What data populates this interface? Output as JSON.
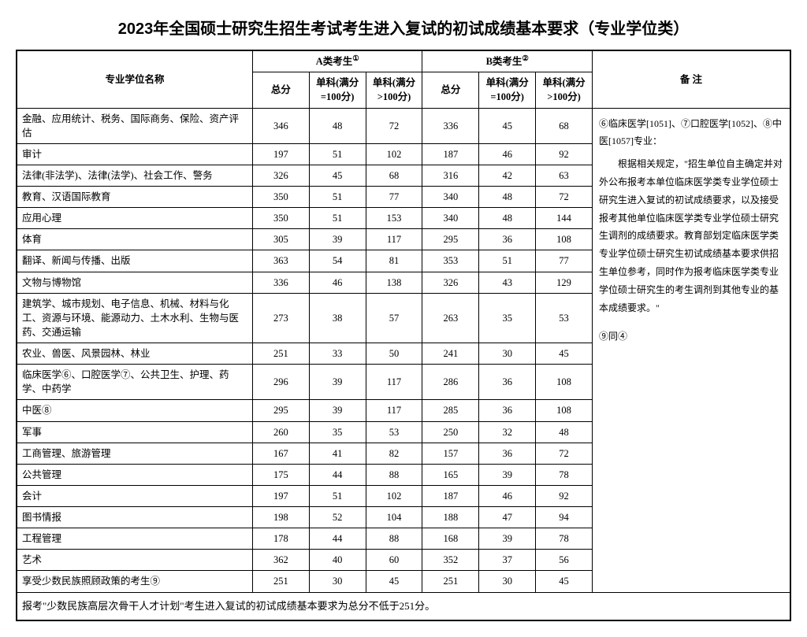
{
  "title": "2023年全国硕士研究生招生考试考生进入复试的初试成绩基本要求（专业学位类）",
  "header": {
    "name": "专业学位名称",
    "groupA": "A类考生",
    "groupB": "B类考生",
    "supA": "①",
    "supB": "②",
    "total": "总分",
    "single100": "单科(满分=100分)",
    "singleOver100": "单科(满分>100分)",
    "notes": "备  注"
  },
  "rows": [
    {
      "name": "金融、应用统计、税务、国际商务、保险、资产评估",
      "a": [
        346,
        48,
        72
      ],
      "b": [
        336,
        45,
        68
      ]
    },
    {
      "name": "审计",
      "a": [
        197,
        51,
        102
      ],
      "b": [
        187,
        46,
        92
      ]
    },
    {
      "name": "法律(非法学)、法律(法学)、社会工作、警务",
      "a": [
        326,
        45,
        68
      ],
      "b": [
        316,
        42,
        63
      ]
    },
    {
      "name": "教育、汉语国际教育",
      "a": [
        350,
        51,
        77
      ],
      "b": [
        340,
        48,
        72
      ]
    },
    {
      "name": "应用心理",
      "a": [
        350,
        51,
        153
      ],
      "b": [
        340,
        48,
        144
      ]
    },
    {
      "name": "体育",
      "a": [
        305,
        39,
        117
      ],
      "b": [
        295,
        36,
        108
      ]
    },
    {
      "name": "翻译、新闻与传播、出版",
      "a": [
        363,
        54,
        81
      ],
      "b": [
        353,
        51,
        77
      ]
    },
    {
      "name": "文物与博物馆",
      "a": [
        336,
        46,
        138
      ],
      "b": [
        326,
        43,
        129
      ]
    },
    {
      "name": "建筑学、城市规划、电子信息、机械、材料与化工、资源与环境、能源动力、土木水利、生物与医药、交通运输",
      "a": [
        273,
        38,
        57
      ],
      "b": [
        263,
        35,
        53
      ]
    },
    {
      "name": "农业、兽医、风景园林、林业",
      "a": [
        251,
        33,
        50
      ],
      "b": [
        241,
        30,
        45
      ]
    },
    {
      "name": "临床医学⑥、口腔医学⑦、公共卫生、护理、药学、中药学",
      "a": [
        296,
        39,
        117
      ],
      "b": [
        286,
        36,
        108
      ]
    },
    {
      "name": "中医⑧",
      "a": [
        295,
        39,
        117
      ],
      "b": [
        285,
        36,
        108
      ]
    },
    {
      "name": "军事",
      "a": [
        260,
        35,
        53
      ],
      "b": [
        250,
        32,
        48
      ]
    },
    {
      "name": "工商管理、旅游管理",
      "a": [
        167,
        41,
        82
      ],
      "b": [
        157,
        36,
        72
      ]
    },
    {
      "name": "公共管理",
      "a": [
        175,
        44,
        88
      ],
      "b": [
        165,
        39,
        78
      ]
    },
    {
      "name": "会计",
      "a": [
        197,
        51,
        102
      ],
      "b": [
        187,
        46,
        92
      ]
    },
    {
      "name": "图书情报",
      "a": [
        198,
        52,
        104
      ],
      "b": [
        188,
        47,
        94
      ]
    },
    {
      "name": "工程管理",
      "a": [
        178,
        44,
        88
      ],
      "b": [
        168,
        39,
        78
      ]
    },
    {
      "name": "艺术",
      "a": [
        362,
        40,
        60
      ],
      "b": [
        352,
        37,
        56
      ]
    },
    {
      "name": "享受少数民族照顾政策的考生⑨",
      "a": [
        251,
        30,
        45
      ],
      "b": [
        251,
        30,
        45
      ]
    }
  ],
  "notes": {
    "line1": "⑥临床医学[1051]、⑦口腔医学[1052]、⑧中医[1057]专业：",
    "line2": "　　根据相关规定，\"招生单位自主确定并对外公布报考本单位临床医学类专业学位硕士研究生进入复试的初试成绩要求，以及接受报考其他单位临床医学类专业学位硕士研究生调剂的成绩要求。教育部划定临床医学类专业学位硕士研究生初试成绩基本要求供招生单位参考，同时作为报考临床医学类专业学位硕士研究生的考生调剂到其他专业的基本成绩要求。\"",
    "line3": "⑨同④"
  },
  "footnote": "报考\"少数民族高层次骨干人才计划\"考生进入复试的初试成绩基本要求为总分不低于251分。"
}
